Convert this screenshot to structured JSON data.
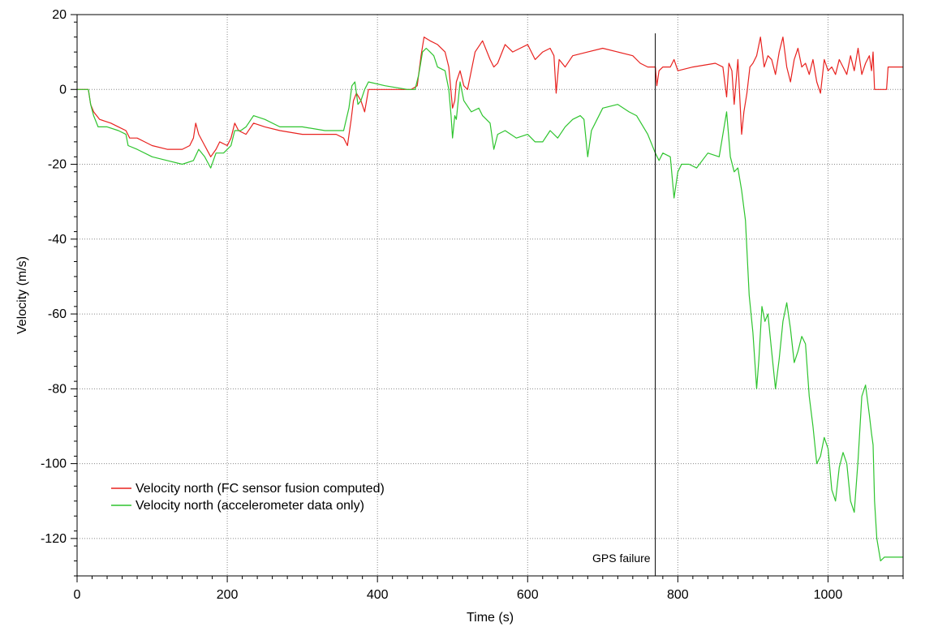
{
  "chart_data": {
    "type": "line",
    "title": "",
    "xlabel": "Time (s)",
    "ylabel": "Velocity (m/s)",
    "xlim": [
      0,
      1100
    ],
    "ylim": [
      -130,
      20
    ],
    "x_ticks": [
      0,
      200,
      400,
      600,
      800,
      1000
    ],
    "y_ticks": [
      20,
      0,
      -20,
      -40,
      -60,
      -80,
      -100,
      -120
    ],
    "grid": true,
    "legend": "bottom-left",
    "annotation": {
      "text": "GPS failure",
      "x": 770
    },
    "series": [
      {
        "name": "Velocity north (FC sensor fusion computed)",
        "color": "#e8221f",
        "points": [
          [
            0,
            0
          ],
          [
            15,
            0
          ],
          [
            18,
            -4
          ],
          [
            22,
            -6
          ],
          [
            30,
            -8
          ],
          [
            45,
            -9
          ],
          [
            55,
            -10
          ],
          [
            65,
            -11
          ],
          [
            70,
            -13
          ],
          [
            80,
            -13
          ],
          [
            90,
            -14
          ],
          [
            100,
            -15
          ],
          [
            120,
            -16
          ],
          [
            140,
            -16
          ],
          [
            150,
            -15
          ],
          [
            155,
            -13
          ],
          [
            158,
            -9
          ],
          [
            162,
            -12
          ],
          [
            170,
            -15
          ],
          [
            178,
            -18
          ],
          [
            185,
            -16
          ],
          [
            190,
            -14
          ],
          [
            200,
            -15
          ],
          [
            205,
            -13
          ],
          [
            210,
            -9
          ],
          [
            215,
            -11
          ],
          [
            225,
            -12
          ],
          [
            235,
            -9
          ],
          [
            250,
            -10
          ],
          [
            270,
            -11
          ],
          [
            300,
            -12
          ],
          [
            320,
            -12
          ],
          [
            345,
            -12
          ],
          [
            355,
            -13
          ],
          [
            360,
            -15
          ],
          [
            365,
            -8
          ],
          [
            368,
            -3
          ],
          [
            372,
            -1
          ],
          [
            378,
            -3
          ],
          [
            383,
            -6
          ],
          [
            388,
            0
          ],
          [
            400,
            0
          ],
          [
            445,
            0
          ],
          [
            453,
            1
          ],
          [
            458,
            9
          ],
          [
            462,
            14
          ],
          [
            470,
            13
          ],
          [
            480,
            12
          ],
          [
            490,
            10
          ],
          [
            495,
            6
          ],
          [
            500,
            -5
          ],
          [
            503,
            -3
          ],
          [
            505,
            2
          ],
          [
            510,
            5
          ],
          [
            515,
            1
          ],
          [
            520,
            0
          ],
          [
            530,
            10
          ],
          [
            540,
            13
          ],
          [
            550,
            8
          ],
          [
            555,
            6
          ],
          [
            560,
            7
          ],
          [
            570,
            12
          ],
          [
            580,
            10
          ],
          [
            590,
            11
          ],
          [
            600,
            12
          ],
          [
            610,
            8
          ],
          [
            620,
            10
          ],
          [
            630,
            11
          ],
          [
            635,
            9
          ],
          [
            638,
            -1
          ],
          [
            642,
            8
          ],
          [
            650,
            6
          ],
          [
            660,
            9
          ],
          [
            680,
            10
          ],
          [
            700,
            11
          ],
          [
            720,
            10
          ],
          [
            740,
            9
          ],
          [
            750,
            7
          ],
          [
            760,
            6
          ],
          [
            770,
            6
          ],
          [
            772,
            1
          ],
          [
            775,
            5
          ],
          [
            780,
            6
          ],
          [
            790,
            6
          ],
          [
            795,
            8
          ],
          [
            800,
            5
          ],
          [
            820,
            6
          ],
          [
            850,
            7
          ],
          [
            860,
            6
          ],
          [
            865,
            -2
          ],
          [
            868,
            7
          ],
          [
            872,
            5
          ],
          [
            875,
            -4
          ],
          [
            880,
            8
          ],
          [
            885,
            -12
          ],
          [
            888,
            -6
          ],
          [
            892,
            -1
          ],
          [
            896,
            6
          ],
          [
            900,
            7
          ],
          [
            905,
            9
          ],
          [
            910,
            14
          ],
          [
            915,
            6
          ],
          [
            920,
            9
          ],
          [
            925,
            8
          ],
          [
            930,
            4
          ],
          [
            935,
            10
          ],
          [
            940,
            14
          ],
          [
            945,
            6
          ],
          [
            950,
            2
          ],
          [
            955,
            8
          ],
          [
            960,
            11
          ],
          [
            965,
            6
          ],
          [
            970,
            7
          ],
          [
            975,
            4
          ],
          [
            980,
            8
          ],
          [
            985,
            2
          ],
          [
            990,
            -1
          ],
          [
            995,
            8
          ],
          [
            1000,
            5
          ],
          [
            1005,
            6
          ],
          [
            1010,
            4
          ],
          [
            1015,
            8
          ],
          [
            1020,
            6
          ],
          [
            1025,
            4
          ],
          [
            1030,
            9
          ],
          [
            1035,
            5
          ],
          [
            1040,
            11
          ],
          [
            1045,
            4
          ],
          [
            1050,
            7
          ],
          [
            1055,
            9
          ],
          [
            1058,
            5
          ],
          [
            1060,
            10
          ],
          [
            1062,
            0
          ],
          [
            1078,
            0
          ],
          [
            1080,
            6
          ],
          [
            1100,
            6
          ]
        ]
      },
      {
        "name": "Velocity north (accelerometer data only)",
        "color": "#2ec42e",
        "points": [
          [
            0,
            0
          ],
          [
            15,
            0
          ],
          [
            18,
            -4
          ],
          [
            22,
            -7
          ],
          [
            28,
            -10
          ],
          [
            40,
            -10
          ],
          [
            55,
            -11
          ],
          [
            65,
            -12
          ],
          [
            68,
            -15
          ],
          [
            80,
            -16
          ],
          [
            100,
            -18
          ],
          [
            120,
            -19
          ],
          [
            140,
            -20
          ],
          [
            155,
            -19
          ],
          [
            162,
            -16
          ],
          [
            170,
            -18
          ],
          [
            178,
            -21
          ],
          [
            185,
            -17
          ],
          [
            195,
            -17
          ],
          [
            205,
            -15
          ],
          [
            210,
            -11
          ],
          [
            218,
            -11
          ],
          [
            225,
            -10
          ],
          [
            235,
            -7
          ],
          [
            250,
            -8
          ],
          [
            270,
            -10
          ],
          [
            300,
            -10
          ],
          [
            330,
            -11
          ],
          [
            355,
            -11
          ],
          [
            362,
            -5
          ],
          [
            366,
            1
          ],
          [
            370,
            2
          ],
          [
            374,
            -4
          ],
          [
            378,
            -3
          ],
          [
            383,
            0
          ],
          [
            388,
            2
          ],
          [
            410,
            1
          ],
          [
            440,
            0
          ],
          [
            450,
            0
          ],
          [
            455,
            4
          ],
          [
            460,
            10
          ],
          [
            465,
            11
          ],
          [
            470,
            10
          ],
          [
            475,
            9
          ],
          [
            480,
            6
          ],
          [
            490,
            5
          ],
          [
            495,
            0
          ],
          [
            498,
            -7
          ],
          [
            500,
            -13
          ],
          [
            503,
            -7
          ],
          [
            505,
            -8
          ],
          [
            510,
            2
          ],
          [
            515,
            -3
          ],
          [
            525,
            -6
          ],
          [
            535,
            -5
          ],
          [
            540,
            -7
          ],
          [
            550,
            -9
          ],
          [
            555,
            -16
          ],
          [
            560,
            -12
          ],
          [
            570,
            -11
          ],
          [
            585,
            -13
          ],
          [
            600,
            -12
          ],
          [
            610,
            -14
          ],
          [
            620,
            -14
          ],
          [
            630,
            -11
          ],
          [
            640,
            -13
          ],
          [
            650,
            -10
          ],
          [
            660,
            -8
          ],
          [
            670,
            -7
          ],
          [
            675,
            -8
          ],
          [
            680,
            -18
          ],
          [
            685,
            -11
          ],
          [
            700,
            -5
          ],
          [
            720,
            -4
          ],
          [
            735,
            -6
          ],
          [
            745,
            -7
          ],
          [
            760,
            -12
          ],
          [
            770,
            -17
          ],
          [
            775,
            -19
          ],
          [
            780,
            -17
          ],
          [
            790,
            -18
          ],
          [
            795,
            -29
          ],
          [
            800,
            -22
          ],
          [
            805,
            -20
          ],
          [
            815,
            -20
          ],
          [
            825,
            -21
          ],
          [
            840,
            -17
          ],
          [
            855,
            -18
          ],
          [
            860,
            -12
          ],
          [
            865,
            -6
          ],
          [
            870,
            -18
          ],
          [
            875,
            -22
          ],
          [
            880,
            -21
          ],
          [
            885,
            -27
          ],
          [
            890,
            -35
          ],
          [
            895,
            -55
          ],
          [
            900,
            -65
          ],
          [
            905,
            -80
          ],
          [
            908,
            -72
          ],
          [
            912,
            -58
          ],
          [
            916,
            -62
          ],
          [
            920,
            -60
          ],
          [
            925,
            -70
          ],
          [
            930,
            -80
          ],
          [
            935,
            -72
          ],
          [
            940,
            -62
          ],
          [
            945,
            -57
          ],
          [
            950,
            -64
          ],
          [
            955,
            -73
          ],
          [
            960,
            -70
          ],
          [
            965,
            -66
          ],
          [
            970,
            -68
          ],
          [
            975,
            -82
          ],
          [
            980,
            -90
          ],
          [
            985,
            -100
          ],
          [
            990,
            -98
          ],
          [
            995,
            -93
          ],
          [
            1000,
            -96
          ],
          [
            1005,
            -107
          ],
          [
            1010,
            -110
          ],
          [
            1015,
            -101
          ],
          [
            1020,
            -97
          ],
          [
            1025,
            -100
          ],
          [
            1030,
            -110
          ],
          [
            1035,
            -113
          ],
          [
            1040,
            -99
          ],
          [
            1045,
            -82
          ],
          [
            1050,
            -79
          ],
          [
            1055,
            -87
          ],
          [
            1058,
            -92
          ],
          [
            1060,
            -95
          ],
          [
            1062,
            -110
          ],
          [
            1065,
            -120
          ],
          [
            1070,
            -126
          ],
          [
            1075,
            -125
          ],
          [
            1100,
            -125
          ]
        ]
      }
    ]
  }
}
